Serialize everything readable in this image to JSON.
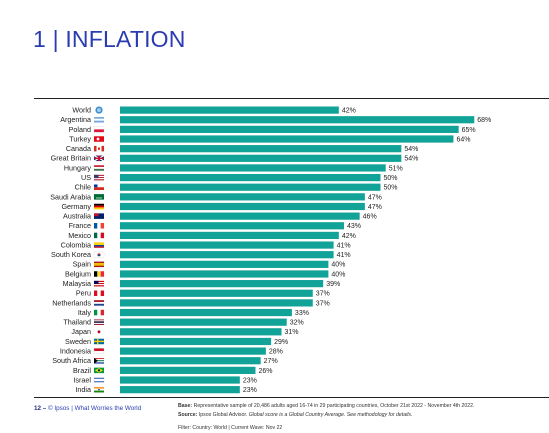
{
  "title": "1 | INFLATION",
  "footer": {
    "page_number": "12 –",
    "brand": "© Ipsos | What Worries the World",
    "base_label": "Base:",
    "base_text": "Representative sample of 20,486 adults aged 16-74 in 29 participating countries, October 21st 2022 - November 4th 2022.",
    "source_label": "Source:",
    "source_text": "Ipsos Global Advisor.",
    "source_note": "Global score is a Global Country Average. See methodology for details.",
    "filter": "Filter: Country: World | Current Wave: Nov 22"
  },
  "colors": {
    "bar": "#12a398",
    "title": "#2b3bb0"
  },
  "chart_data": {
    "type": "bar",
    "orientation": "horizontal",
    "categories": [
      "World",
      "Argentina",
      "Poland",
      "Turkey",
      "Canada",
      "Great Britain",
      "Hungary",
      "US",
      "Chile",
      "Saudi Arabia",
      "Germany",
      "Australia",
      "France",
      "Mexico",
      "Colombia",
      "South Korea",
      "Spain",
      "Belgium",
      "Malaysia",
      "Peru",
      "Netherlands",
      "Italy",
      "Thailand",
      "Japan",
      "Sweden",
      "Indonesia",
      "South Africa",
      "Brazil",
      "Israel",
      "India"
    ],
    "values": [
      42,
      68,
      65,
      64,
      54,
      54,
      51,
      50,
      50,
      47,
      47,
      46,
      43,
      42,
      41,
      41,
      40,
      40,
      39,
      37,
      37,
      33,
      32,
      31,
      29,
      28,
      27,
      26,
      23,
      23
    ],
    "data_labels": [
      "42%",
      "68%",
      "65%",
      "64%",
      "54%",
      "54%",
      "51%",
      "50%",
      "50%",
      "47%",
      "47%",
      "46%",
      "43%",
      "42%",
      "41%",
      "41%",
      "40%",
      "40%",
      "39%",
      "37%",
      "37%",
      "33%",
      "32%",
      "31%",
      "29%",
      "28%",
      "27%",
      "26%",
      "23%",
      "23%"
    ],
    "xlim": [
      0,
      80
    ],
    "grid": false,
    "legend": "none"
  }
}
